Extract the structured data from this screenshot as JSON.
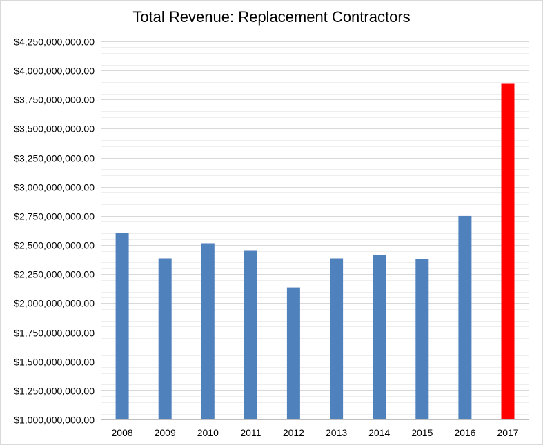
{
  "chart_data": {
    "type": "bar",
    "title": "Total Revenue: Replacement Contractors",
    "xlabel": "",
    "ylabel": "",
    "categories": [
      "2008",
      "2009",
      "2010",
      "2011",
      "2012",
      "2013",
      "2014",
      "2015",
      "2016",
      "2017"
    ],
    "values": [
      2605000000,
      2385000000,
      2515000000,
      2450000000,
      2135000000,
      2385000000,
      2415000000,
      2380000000,
      2750000000,
      3885000000
    ],
    "ylim": [
      1000000000,
      4250000000
    ],
    "ytick_step": 250000000,
    "y_tick_labels": [
      "$1,000,000,000.00",
      "$1,250,000,000.00",
      "$1,500,000,000.00",
      "$1,750,000,000.00",
      "$2,000,000,000.00",
      "$2,250,000,000.00",
      "$2,500,000,000.00",
      "$2,750,000,000.00",
      "$3,000,000,000.00",
      "$3,250,000,000.00",
      "$3,500,000,000.00",
      "$3,750,000,000.00",
      "$4,000,000,000.00",
      "$4,250,000,000.00"
    ],
    "bar_colors": [
      "#4f81bd",
      "#4f81bd",
      "#4f81bd",
      "#4f81bd",
      "#4f81bd",
      "#4f81bd",
      "#4f81bd",
      "#4f81bd",
      "#4f81bd",
      "#ff0000"
    ],
    "grid": true,
    "minor_grid": true,
    "legend": "none"
  },
  "colors": {
    "major_grid": "#d9d9d9",
    "minor_grid": "#eeeeee",
    "axis": "#bfbfbf"
  }
}
